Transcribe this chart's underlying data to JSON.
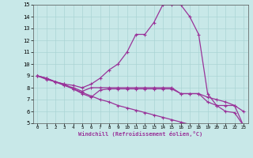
{
  "xlabel": "Windchill (Refroidissement éolien,°C)",
  "xlim": [
    -0.5,
    23.5
  ],
  "ylim": [
    5,
    15
  ],
  "xtick_positions": [
    0,
    1,
    2,
    3,
    4,
    5,
    6,
    7,
    8,
    9,
    10,
    11,
    12,
    13,
    14,
    15,
    16,
    17,
    18,
    19,
    20,
    21,
    22,
    23
  ],
  "xtick_labels": [
    "0",
    "1",
    "2",
    "3",
    "4",
    "5",
    "6",
    "7",
    "8",
    "9",
    "10",
    "11",
    "12",
    "13",
    "14",
    "15",
    "16",
    "17",
    "18",
    "19",
    "20",
    "21",
    "22",
    "23"
  ],
  "ytick_positions": [
    5,
    6,
    7,
    8,
    9,
    10,
    11,
    12,
    13,
    14,
    15
  ],
  "ytick_labels": [
    "5",
    "6",
    "7",
    "8",
    "9",
    "10",
    "11",
    "12",
    "13",
    "14",
    "15"
  ],
  "bg_color": "#c8e8e8",
  "line_color": "#993399",
  "grid_color": "#aad4d4",
  "lines": [
    {
      "x": [
        0,
        1,
        2,
        3,
        4,
        5,
        6,
        7,
        8,
        9,
        10,
        11,
        12,
        13,
        14,
        15,
        16,
        17,
        18,
        19,
        20,
        21,
        22,
        23
      ],
      "y": [
        9,
        8.8,
        8.5,
        8.3,
        8.2,
        8.0,
        8.3,
        8.8,
        9.5,
        10.0,
        11.0,
        12.5,
        12.5,
        13.5,
        15.0,
        15.0,
        15.0,
        14.0,
        12.5,
        7.5,
        6.5,
        6.5,
        6.5,
        4.8
      ]
    },
    {
      "x": [
        0,
        1,
        2,
        3,
        4,
        5,
        6,
        7,
        8,
        9,
        10,
        11,
        12,
        13,
        14,
        15,
        16,
        17,
        18,
        19,
        20,
        21,
        22,
        23
      ],
      "y": [
        9,
        8.8,
        8.5,
        8.2,
        8.0,
        7.7,
        8.0,
        8.0,
        8.0,
        8.0,
        8.0,
        8.0,
        8.0,
        8.0,
        8.0,
        8.0,
        7.5,
        7.5,
        7.5,
        7.2,
        7.0,
        6.8,
        6.5,
        6.0
      ]
    },
    {
      "x": [
        0,
        1,
        2,
        3,
        4,
        5,
        6,
        7,
        8,
        9,
        10,
        11,
        12,
        13,
        14,
        15,
        16,
        17,
        18,
        19,
        20,
        21,
        22,
        23
      ],
      "y": [
        9,
        8.8,
        8.5,
        8.3,
        7.9,
        7.5,
        7.2,
        7.8,
        7.9,
        7.9,
        7.9,
        7.9,
        7.9,
        7.9,
        7.9,
        7.9,
        7.5,
        7.5,
        7.5,
        6.8,
        6.5,
        6.0,
        5.9,
        4.8
      ]
    },
    {
      "x": [
        0,
        1,
        2,
        3,
        4,
        5,
        6,
        7,
        8,
        9,
        10,
        11,
        12,
        13,
        14,
        15,
        16,
        17,
        18,
        19,
        20,
        21,
        22,
        23
      ],
      "y": [
        9,
        8.7,
        8.5,
        8.2,
        7.9,
        7.6,
        7.3,
        7.0,
        6.8,
        6.5,
        6.3,
        6.1,
        5.9,
        5.7,
        5.5,
        5.3,
        5.1,
        4.9,
        4.9,
        4.9,
        4.8,
        4.8,
        4.8,
        4.8
      ]
    }
  ]
}
